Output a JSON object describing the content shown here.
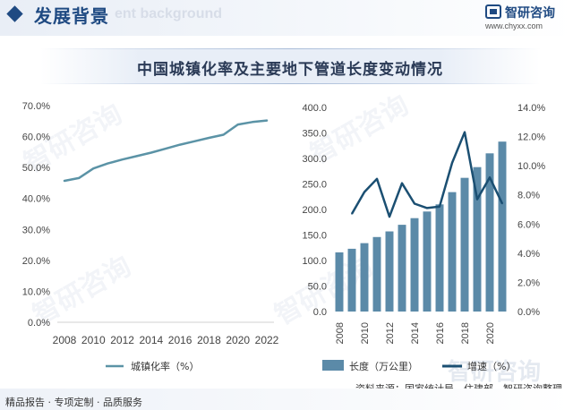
{
  "header": {
    "title": "发展背景",
    "subtitle": "ent background",
    "brand_name": "智研咨询",
    "brand_url": "www.chyxx.com"
  },
  "watermark": "智研咨询",
  "chart_title": "中国城镇化率及主要地下管道长度变动情况",
  "chart_data": [
    {
      "type": "line",
      "x": [
        2008,
        2009,
        2010,
        2011,
        2012,
        2013,
        2014,
        2015,
        2016,
        2017,
        2018,
        2019,
        2020,
        2021,
        2022
      ],
      "xticks": [
        "2008",
        "2010",
        "2012",
        "2014",
        "2016",
        "2018",
        "2020",
        "2022"
      ],
      "series": [
        {
          "name": "城镇化率（%）",
          "values": [
            45.7,
            46.6,
            49.7,
            51.3,
            52.6,
            53.7,
            54.8,
            56.1,
            57.4,
            58.5,
            59.6,
            60.6,
            63.9,
            64.7,
            65.2
          ],
          "color": "#5b93a6"
        }
      ],
      "yticks": [
        "0.0%",
        "10.0%",
        "20.0%",
        "30.0%",
        "40.0%",
        "50.0%",
        "60.0%",
        "70.0%"
      ],
      "ylim": [
        0,
        70
      ],
      "legend_position": "bottom"
    },
    {
      "type": "bar",
      "x": [
        2008,
        2009,
        2010,
        2011,
        2012,
        2013,
        2014,
        2015,
        2016,
        2017,
        2018,
        2019,
        2020,
        2021
      ],
      "xticks": [
        "2008",
        "2010",
        "2012",
        "2014",
        "2016",
        "2018",
        "2020"
      ],
      "series": [
        {
          "name": "长度（万公里）",
          "type": "bar",
          "axis": "left",
          "values": [
            116,
            123,
            134,
            146,
            157,
            170,
            183,
            196,
            210,
            234,
            262,
            283,
            310,
            333
          ],
          "color": "#5b8aa8"
        },
        {
          "name": "增速（%）",
          "type": "line",
          "axis": "right",
          "values": [
            null,
            6.7,
            8.2,
            9.1,
            6.5,
            8.8,
            7.4,
            7.1,
            7.2,
            10.2,
            12.3,
            7.7,
            9.2,
            7.4
          ],
          "color": "#1b4f72"
        }
      ],
      "yticks_left": [
        "0.0",
        "50.0",
        "100.0",
        "150.0",
        "200.0",
        "250.0",
        "300.0",
        "350.0",
        "400.0"
      ],
      "ylim_left": [
        0,
        400
      ],
      "yticks_right": [
        "0.0%",
        "2.0%",
        "4.0%",
        "6.0%",
        "8.0%",
        "10.0%",
        "12.0%",
        "14.0%"
      ],
      "ylim_right": [
        0,
        14
      ],
      "legend_position": "bottom"
    }
  ],
  "source": "资料来源：国家统计局、住建部、智研咨询整理",
  "footer": "精品报告 · 专项定制 · 品质服务",
  "colors": {
    "accent": "#1f4a82",
    "line": "#5b93a6",
    "bar": "#5b8aa8",
    "growth": "#1b4f72"
  }
}
